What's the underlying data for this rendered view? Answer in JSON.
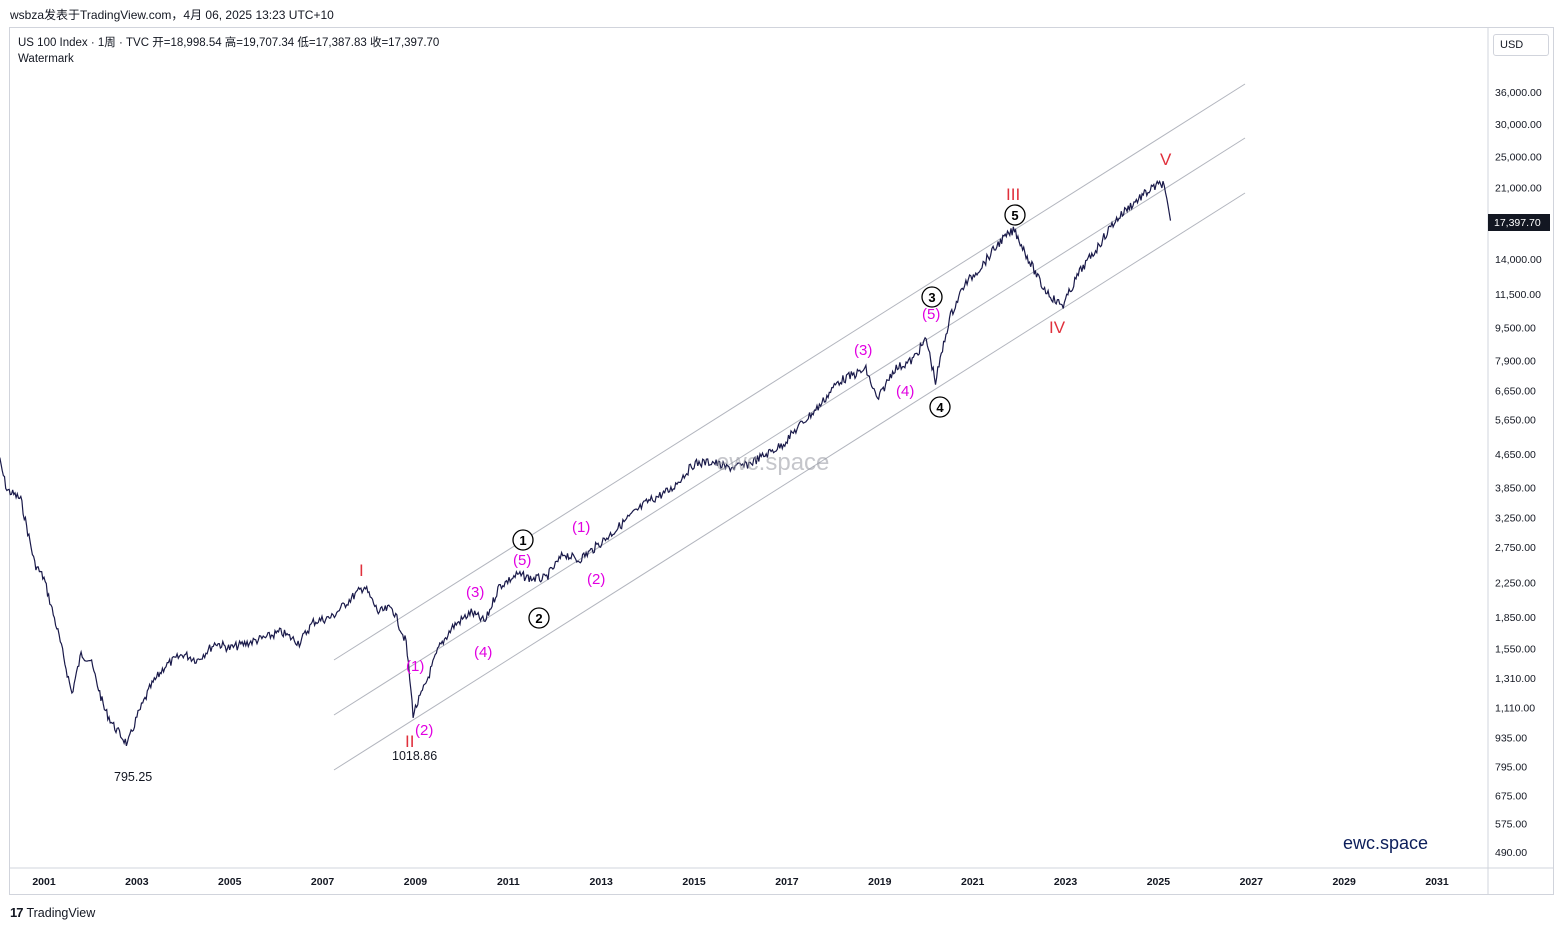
{
  "header": {
    "text": "wsbza发表于TradingView.com，4月 06, 2025 13:23 UTC+10"
  },
  "legend": {
    "symbol": "US 100 Index · 1周 · TVC",
    "ohlc": "开=18,998.54  高=19,707.34  低=17,387.83  收=17,397.70",
    "watermark_title": "Watermark"
  },
  "currency": "USD",
  "last_price_label": "17,397.70",
  "watermark_center": "ewc.space",
  "watermark_corner": "ewc.space",
  "footer": {
    "logo": "17",
    "brand": "TradingView"
  },
  "colors": {
    "price_line": "#1a1a4a",
    "channel": "#b2b5be",
    "wave_red": "#e0303c",
    "wave_magenta": "#e100e1",
    "axis_text": "#131722"
  },
  "chart_data": {
    "type": "line",
    "title": "",
    "xlabel": "",
    "ylabel": "",
    "ylog": true,
    "grid": false,
    "y_ticks": [
      "36,000.00",
      "30,000.00",
      "25,000.00",
      "21,000.00",
      "14,000.00",
      "11,500.00",
      "9,500.00",
      "7,900.00",
      "6,650.00",
      "5,650.00",
      "4,650.00",
      "3,850.00",
      "3,250.00",
      "2,750.00",
      "2,250.00",
      "1,850.00",
      "1,550.00",
      "1,310.00",
      "1,110.00",
      "935.00",
      "795.00",
      "675.00",
      "575.00",
      "490.00"
    ],
    "x_ticks": [
      "2001",
      "2003",
      "2005",
      "2007",
      "2009",
      "2011",
      "2013",
      "2015",
      "2017",
      "2019",
      "2021",
      "2023",
      "2025",
      "2027",
      "2029",
      "2031"
    ],
    "series": [
      {
        "values_note_x_is_year": true,
        "x": [
          2000.0,
          2000.2,
          2000.5,
          2000.8,
          2001.0,
          2001.3,
          2001.6,
          2001.8,
          2002.0,
          2002.3,
          2002.5,
          2002.8,
          2003.0,
          2003.3,
          2003.6,
          2004.0,
          2004.3,
          2004.7,
          2005.0,
          2005.4,
          2005.8,
          2006.1,
          2006.5,
          2006.8,
          2007.2,
          2007.6,
          2007.9,
          2008.2,
          2008.5,
          2008.8,
          2008.95,
          2009.2,
          2009.5,
          2009.8,
          2010.2,
          2010.5,
          2010.8,
          2011.2,
          2011.5,
          2011.8,
          2012.2,
          2012.5,
          2012.8,
          2013.2,
          2013.6,
          2014.0,
          2014.5,
          2015.0,
          2015.4,
          2015.7,
          2016.1,
          2016.5,
          2016.9,
          2017.3,
          2017.7,
          2018.1,
          2018.7,
          2018.95,
          2019.3,
          2019.7,
          2020.0,
          2020.2,
          2020.5,
          2020.8,
          2021.2,
          2021.6,
          2021.9,
          2022.2,
          2022.5,
          2022.8,
          2022.95,
          2023.3,
          2023.7,
          2024.0,
          2024.3,
          2024.6,
          2024.9,
          2025.1,
          2025.26
        ],
        "y": [
          4700,
          3800,
          3600,
          2500,
          2300,
          1700,
          1200,
          1500,
          1450,
          1100,
          1000,
          900,
          1050,
          1250,
          1400,
          1500,
          1450,
          1600,
          1550,
          1600,
          1650,
          1700,
          1600,
          1800,
          1850,
          2050,
          2200,
          1900,
          1950,
          1600,
          1070,
          1250,
          1550,
          1750,
          1900,
          1800,
          2200,
          2350,
          2300,
          2300,
          2650,
          2550,
          2700,
          2950,
          3250,
          3550,
          3800,
          4400,
          4450,
          4300,
          4350,
          4600,
          4900,
          5500,
          6100,
          7000,
          7500,
          6300,
          7500,
          7900,
          8900,
          7000,
          10000,
          12000,
          13500,
          15500,
          16500,
          14000,
          12000,
          11000,
          10800,
          13000,
          15000,
          17000,
          18500,
          19800,
          21000,
          21500,
          17397
        ]
      }
    ]
  },
  "wave_labels": {
    "red": [
      "I",
      "II",
      "III",
      "IV",
      "V"
    ],
    "magenta": [
      "(1)",
      "(2)",
      "(3)",
      "(4)",
      "(5)",
      "(1)",
      "(2)",
      "(3)",
      "(4)",
      "(5)"
    ],
    "circled": [
      "1",
      "2",
      "3",
      "4",
      "5"
    ],
    "lows": [
      "795.25",
      "1018.86"
    ]
  }
}
